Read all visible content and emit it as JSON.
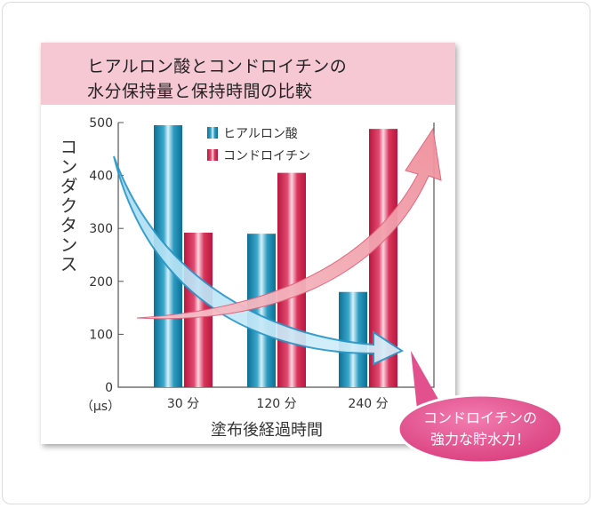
{
  "title_lines": [
    "ヒアルロン酸とコンドロイチンの",
    "水分保持量と保持時間の比較"
  ],
  "callout": {
    "lines": [
      "コンドロイチンの",
      "強力な貯水力！"
    ]
  },
  "colors": {
    "hyaluronic": "#1f8fb3",
    "chondroitin": "#d8204f",
    "title_band": "#f6c8d4",
    "callout": "#e2508d",
    "blue_arrow": "#bfe6f7",
    "pink_arrow": "#f4a9b3"
  },
  "chart_data": {
    "type": "bar",
    "categories": [
      "30 分",
      "120 分",
      "240 分"
    ],
    "series": [
      {
        "name": "ヒアルロン酸",
        "values": [
          495,
          290,
          180
        ]
      },
      {
        "name": "コンドロイチン",
        "values": [
          292,
          405,
          488
        ]
      }
    ],
    "yticks": [
      0,
      100,
      200,
      300,
      400,
      500
    ],
    "ylim": [
      0,
      500
    ],
    "ylabel": "コンダクタンス",
    "yunit": "（μs）",
    "xlabel": "塗布後経過時間",
    "legend_position": "top-center",
    "grid": false
  }
}
